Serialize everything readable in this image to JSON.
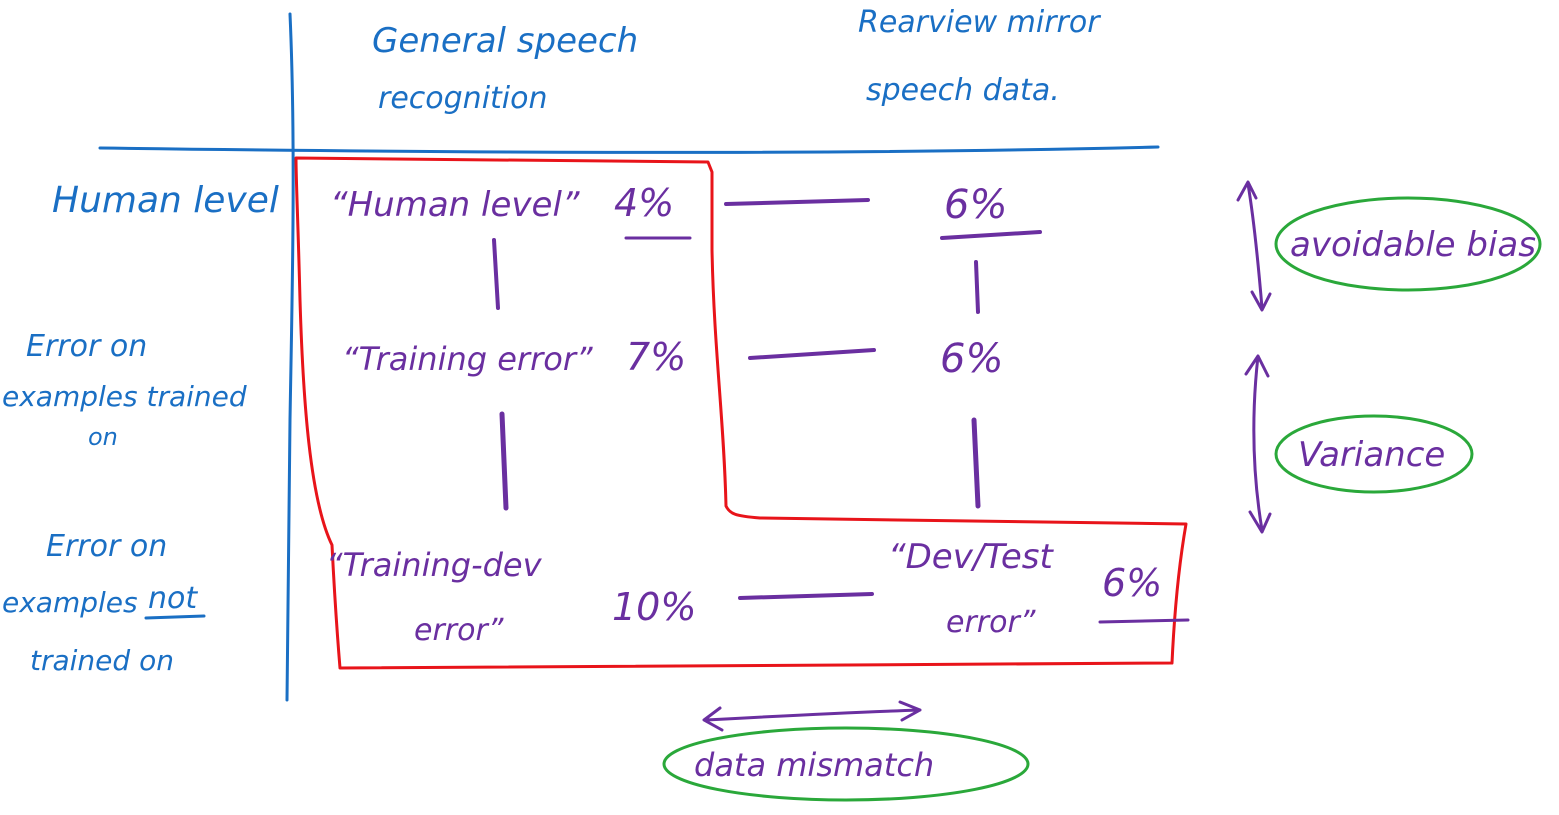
{
  "columns": {
    "general_l1": "General speech",
    "general_l2": "recognition",
    "rearview_l1": "Rearview mirror",
    "rearview_l2": "speech data."
  },
  "rows": {
    "human_level": "Human level",
    "trained_l1": "Error on",
    "trained_l2": "examples trained",
    "trained_l3": "on",
    "not_trained_l1": "Error on",
    "not_trained_l2": "examples",
    "not_trained_not": "not",
    "not_trained_l3": "trained on"
  },
  "cells": {
    "human_level_label": "“Human level”",
    "human_level_general": "4%",
    "human_level_rearview": "6%",
    "training_error_label": "“Training error”",
    "training_error_general": "7%",
    "training_error_rearview": "6%",
    "training_dev_l1": "“Training-dev",
    "training_dev_l2": "error”",
    "training_dev_general": "10%",
    "dev_test_l1": "“Dev/Test",
    "dev_test_l2": "error”",
    "dev_test_rearview": "6%"
  },
  "annotations": {
    "avoidable_bias": "avoidable bias",
    "variance": "Variance",
    "data_mismatch": "data mismatch"
  },
  "colors": {
    "blue": "#1a6fc4",
    "purple": "#6a2fa0",
    "red": "#e8141a",
    "green": "#2aa83a"
  }
}
